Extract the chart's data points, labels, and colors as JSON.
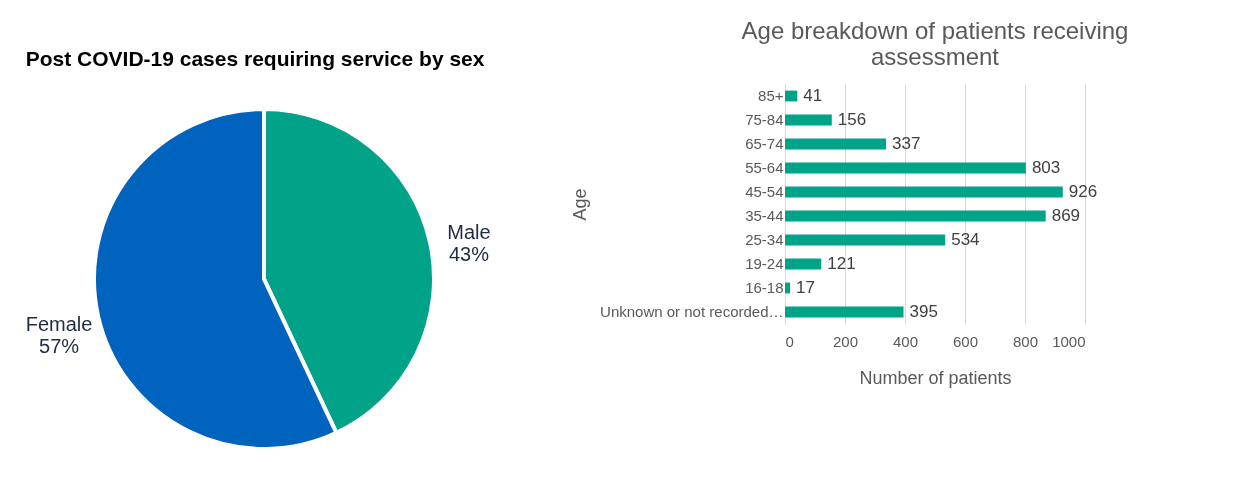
{
  "chart_data": [
    {
      "type": "pie",
      "title": "Post COVID-19 cases requiring service by sex",
      "categories": [
        "Male",
        "Female"
      ],
      "values": [
        43,
        57
      ],
      "colors": [
        "#00a388",
        "#0063be"
      ],
      "value_labels": [
        "43%",
        "57%"
      ]
    },
    {
      "type": "bar",
      "orientation": "horizontal",
      "title": "Age breakdown of patients receiving assessment",
      "xlabel": "Number of patients",
      "ylabel": "Age",
      "categories": [
        "85+",
        "75-84",
        "65-74",
        "55-64",
        "45-54",
        "35-44",
        "25-34",
        "19-24",
        "16-18",
        "Unknown or not recorded…"
      ],
      "values": [
        41,
        156,
        337,
        803,
        926,
        869,
        534,
        121,
        17,
        395
      ],
      "color": "#00a388",
      "xlim": [
        0,
        1000
      ],
      "xticks": [
        0,
        200,
        400,
        600,
        800,
        1000
      ],
      "grid": "x",
      "data_labels": true
    }
  ]
}
